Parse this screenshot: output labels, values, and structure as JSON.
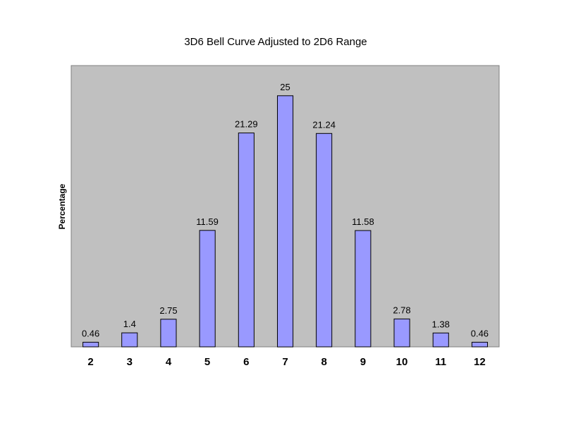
{
  "chart_data": {
    "type": "bar",
    "title": "3D6 Bell Curve Adjusted to 2D6 Range",
    "xlabel": "",
    "ylabel": "Percentage",
    "categories": [
      "2",
      "3",
      "4",
      "5",
      "6",
      "7",
      "8",
      "9",
      "10",
      "11",
      "12"
    ],
    "values": [
      0.46,
      1.4,
      2.75,
      11.59,
      21.29,
      25,
      21.24,
      11.58,
      2.78,
      1.38,
      0.46
    ],
    "data_labels": [
      "0.46",
      "1.4",
      "2.75",
      "11.59",
      "21.29",
      "25",
      "21.24",
      "11.58",
      "2.78",
      "1.38",
      "0.46"
    ],
    "ylim": [
      0,
      28
    ],
    "grid": false,
    "legend": "none",
    "colors": {
      "plot_area": "#c0c0c0",
      "bar_fill": "#9999ff",
      "bar_stroke": "#000000",
      "border": "#808080"
    }
  }
}
